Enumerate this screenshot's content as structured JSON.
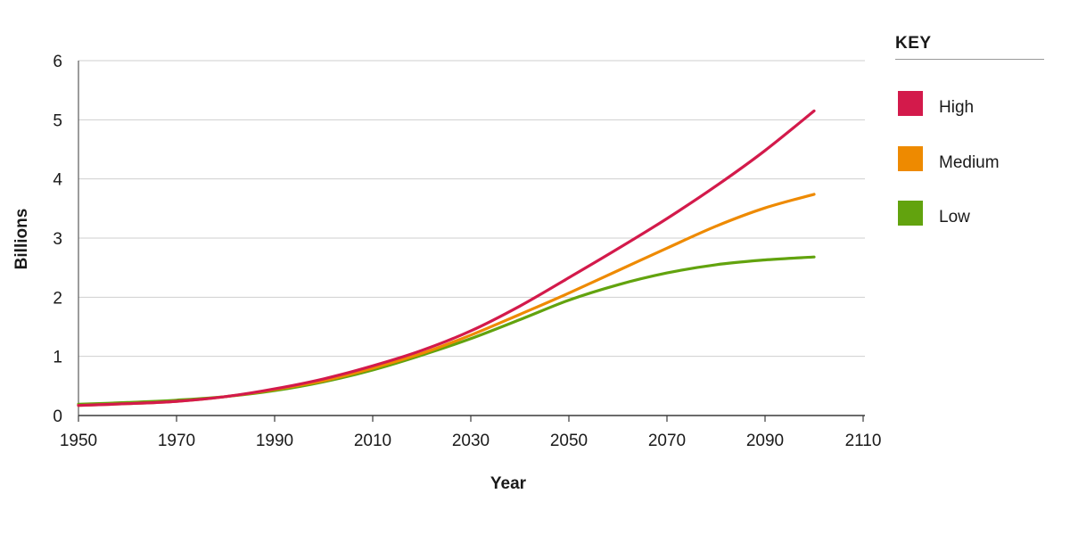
{
  "chart_data": {
    "type": "line",
    "title": "",
    "xlabel": "Year",
    "ylabel": "Billions",
    "xlim": [
      1950,
      2110
    ],
    "ylim": [
      0,
      6
    ],
    "x_ticks": [
      1950,
      1970,
      1990,
      2010,
      2030,
      2050,
      2070,
      2090,
      2110
    ],
    "y_ticks": [
      0,
      1,
      2,
      3,
      4,
      5,
      6
    ],
    "grid": "horizontal",
    "legend_title": "KEY",
    "legend_position": "right",
    "x": [
      1950,
      1960,
      1970,
      1980,
      1990,
      2000,
      2010,
      2020,
      2030,
      2040,
      2050,
      2060,
      2070,
      2080,
      2090,
      2100
    ],
    "series": [
      {
        "name": "High",
        "color": "#d31a4b",
        "values": [
          0.17,
          0.2,
          0.24,
          0.32,
          0.45,
          0.62,
          0.84,
          1.1,
          1.43,
          1.85,
          2.33,
          2.82,
          3.33,
          3.88,
          4.48,
          5.15
        ]
      },
      {
        "name": "Medium",
        "color": "#ee8a00",
        "values": [
          0.17,
          0.2,
          0.24,
          0.32,
          0.44,
          0.59,
          0.8,
          1.05,
          1.36,
          1.71,
          2.07,
          2.45,
          2.83,
          3.2,
          3.51,
          3.74
        ]
      },
      {
        "name": "Low",
        "color": "#62a30e",
        "values": [
          0.19,
          0.22,
          0.26,
          0.32,
          0.42,
          0.57,
          0.77,
          1.02,
          1.3,
          1.62,
          1.95,
          2.21,
          2.41,
          2.55,
          2.63,
          2.68
        ]
      }
    ]
  }
}
